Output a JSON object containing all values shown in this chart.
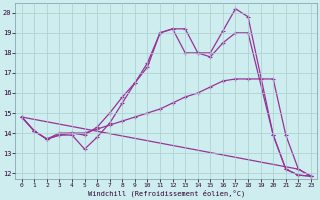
{
  "xlabel": "Windchill (Refroidissement éolien,°C)",
  "background_color": "#cdedef",
  "line_color": "#993399",
  "grid_color": "#aacccc",
  "xlim": [
    -0.5,
    23.5
  ],
  "ylim": [
    11.7,
    20.5
  ],
  "xticks": [
    0,
    1,
    2,
    3,
    4,
    5,
    6,
    7,
    8,
    9,
    10,
    11,
    12,
    13,
    14,
    15,
    16,
    17,
    18,
    19,
    20,
    21,
    22,
    23
  ],
  "yticks": [
    12,
    13,
    14,
    15,
    16,
    17,
    18,
    19,
    20
  ],
  "line1_x": [
    0,
    1,
    2,
    3,
    4,
    5,
    6,
    7,
    8,
    9,
    10,
    11,
    12,
    13,
    14,
    15,
    16,
    17,
    18,
    20,
    21,
    22,
    23
  ],
  "line1_y": [
    14.8,
    14.1,
    13.7,
    13.9,
    13.9,
    13.2,
    13.8,
    14.5,
    15.5,
    16.5,
    17.5,
    19.0,
    19.2,
    18.0,
    18.0,
    18.0,
    19.1,
    20.2,
    19.8,
    13.9,
    12.2,
    11.9,
    11.85
  ],
  "line2_x": [
    0,
    1,
    2,
    3,
    4,
    5,
    6,
    7,
    8,
    9,
    10,
    11,
    12,
    13,
    14,
    15,
    16,
    17,
    18,
    20,
    21,
    22,
    23
  ],
  "line2_y": [
    14.8,
    14.1,
    13.7,
    14.0,
    14.0,
    13.9,
    14.3,
    15.0,
    15.8,
    16.5,
    17.3,
    19.0,
    19.2,
    19.2,
    18.0,
    17.8,
    18.5,
    19.0,
    19.0,
    13.9,
    12.2,
    11.9,
    11.85
  ],
  "line3_x": [
    0,
    1,
    2,
    3,
    4,
    5,
    6,
    7,
    8,
    9,
    10,
    11,
    12,
    13,
    14,
    15,
    16,
    17,
    18,
    19,
    20,
    21,
    22,
    23
  ],
  "line3_y": [
    14.8,
    14.1,
    13.7,
    13.9,
    14.0,
    14.0,
    14.2,
    14.4,
    14.6,
    14.8,
    15.0,
    15.2,
    15.5,
    15.8,
    16.0,
    16.3,
    16.6,
    16.7,
    16.7,
    16.7,
    16.7,
    13.9,
    12.2,
    11.85
  ],
  "line4_x": [
    0,
    22,
    23
  ],
  "line4_y": [
    14.8,
    12.2,
    11.85
  ]
}
